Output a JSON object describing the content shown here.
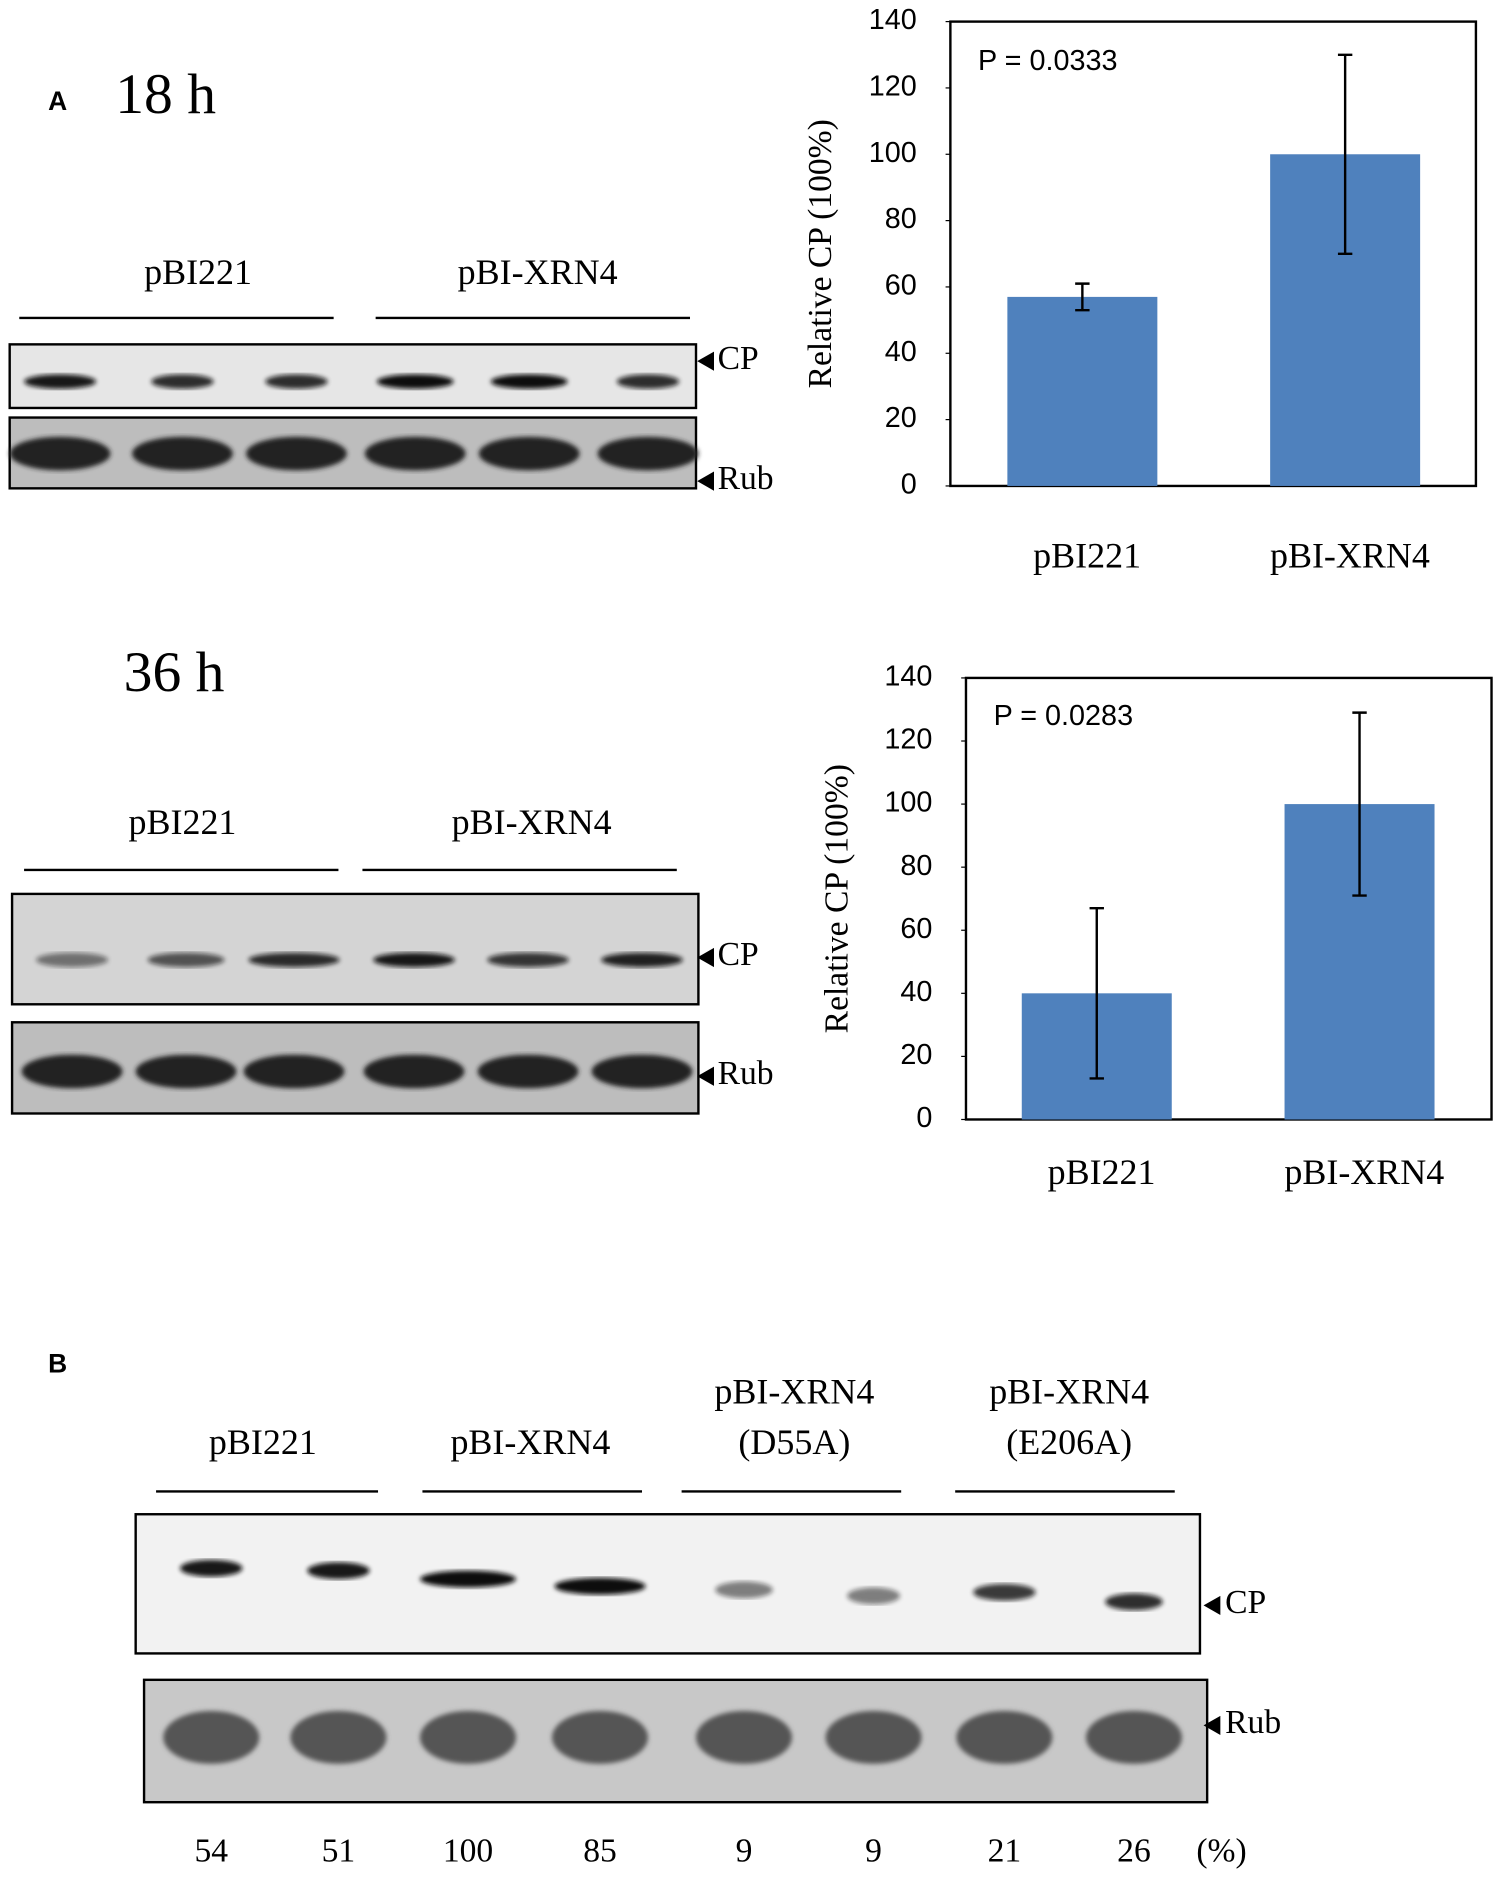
{
  "panel_a": {
    "label": "A",
    "blots": [
      {
        "time": "18 h",
        "groups": [
          "pBI221",
          "pBI-XRN4"
        ],
        "markers": [
          "CP",
          "Rub"
        ]
      },
      {
        "time": "36 h",
        "groups": [
          "pBI221",
          "pBI-XRN4"
        ],
        "markers": [
          "CP",
          "Rub"
        ]
      }
    ]
  },
  "chart_data": [
    {
      "type": "bar",
      "ylabel": "Relative CP (100%)",
      "annotation": "P = 0.0333",
      "categories": [
        "pBI221",
        "pBI-XRN4"
      ],
      "values": [
        57,
        100
      ],
      "errors": [
        4,
        30
      ],
      "color": "#4f81bd",
      "ylim": [
        0,
        140
      ],
      "yticks": [
        0,
        20,
        40,
        60,
        80,
        100,
        120,
        140
      ]
    },
    {
      "type": "bar",
      "ylabel": "Relative CP (100%)",
      "annotation": "P = 0.0283",
      "categories": [
        "pBI221",
        "pBI-XRN4"
      ],
      "values": [
        40,
        100
      ],
      "errors": [
        27,
        29
      ],
      "color": "#4f81bd",
      "ylim": [
        0,
        140
      ],
      "yticks": [
        0,
        20,
        40,
        60,
        80,
        100,
        120,
        140
      ]
    }
  ],
  "panel_b": {
    "label": "B",
    "groups": [
      [
        "pBI221"
      ],
      [
        "pBI-XRN4"
      ],
      [
        "pBI-XRN4",
        "(D55A)"
      ],
      [
        "pBI-XRN4",
        "(E206A)"
      ]
    ],
    "markers": [
      "CP",
      "Rub"
    ],
    "percentages": [
      54,
      51,
      100,
      85,
      9,
      9,
      21,
      26
    ],
    "unit": "(%)"
  }
}
